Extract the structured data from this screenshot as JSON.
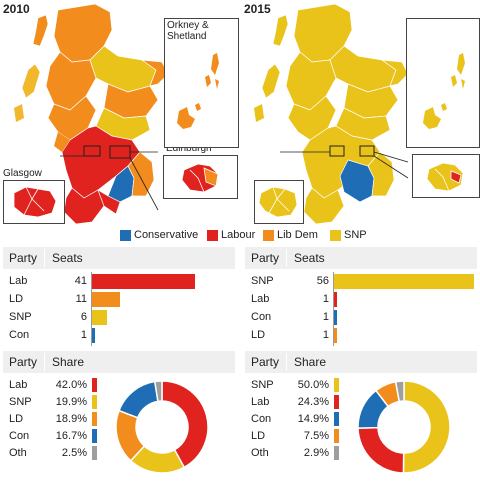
{
  "maps": {
    "left": {
      "year": "2010",
      "insets": [
        {
          "label": "Glasgow"
        },
        {
          "label": "Edinburgh"
        }
      ]
    },
    "right": {
      "year": "2015",
      "insets": [
        {
          "label": "Orkney & Shetland"
        }
      ]
    }
  },
  "legend": [
    {
      "name": "Conservative",
      "color": "#1f6db5"
    },
    {
      "name": "Labour",
      "color": "#e0231f"
    },
    {
      "name": "Lib Dem",
      "color": "#f28c1c"
    },
    {
      "name": "SNP",
      "color": "#e9c21a"
    }
  ],
  "colors": {
    "con": "#1f6db5",
    "lab": "#e0231f",
    "ld": "#f28c1c",
    "snp": "#e9c21a",
    "oth": "#9e9e9e",
    "map_snp_2010": "#f0b82a"
  },
  "tables": {
    "seats_2010": {
      "headers": [
        "Party",
        "Seats"
      ],
      "rows": [
        {
          "party": "Lab",
          "value": 41,
          "color": "#e0231f"
        },
        {
          "party": "LD",
          "value": 11,
          "color": "#f28c1c"
        },
        {
          "party": "SNP",
          "value": 6,
          "color": "#e9c21a"
        },
        {
          "party": "Con",
          "value": 1,
          "color": "#1f6db5"
        }
      ]
    },
    "seats_2015": {
      "headers": [
        "Party",
        "Seats"
      ],
      "rows": [
        {
          "party": "SNP",
          "value": 56,
          "color": "#e9c21a"
        },
        {
          "party": "Lab",
          "value": 1,
          "color": "#e0231f"
        },
        {
          "party": "Con",
          "value": 1,
          "color": "#1f6db5"
        },
        {
          "party": "LD",
          "value": 1,
          "color": "#f28c1c"
        }
      ]
    },
    "share_2010": {
      "headers": [
        "Party",
        "Share"
      ],
      "rows": [
        {
          "party": "Lab",
          "value": "42.0%",
          "pct": 42.0,
          "color": "#e0231f"
        },
        {
          "party": "SNP",
          "value": "19.9%",
          "pct": 19.9,
          "color": "#e9c21a"
        },
        {
          "party": "LD",
          "value": "18.9%",
          "pct": 18.9,
          "color": "#f28c1c"
        },
        {
          "party": "Con",
          "value": "16.7%",
          "pct": 16.7,
          "color": "#1f6db5"
        },
        {
          "party": "Oth",
          "value": "2.5%",
          "pct": 2.5,
          "color": "#9e9e9e"
        }
      ]
    },
    "share_2015": {
      "headers": [
        "Party",
        "Share"
      ],
      "rows": [
        {
          "party": "SNP",
          "value": "50.0%",
          "pct": 50.0,
          "color": "#e9c21a"
        },
        {
          "party": "Lab",
          "value": "24.3%",
          "pct": 24.3,
          "color": "#e0231f"
        },
        {
          "party": "Con",
          "value": "14.9%",
          "pct": 14.9,
          "color": "#1f6db5"
        },
        {
          "party": "LD",
          "value": "7.5%",
          "pct": 7.5,
          "color": "#f28c1c"
        },
        {
          "party": "Oth",
          "value": "2.9%",
          "pct": 2.9,
          "color": "#9e9e9e"
        }
      ]
    }
  },
  "seats_max": 56
}
